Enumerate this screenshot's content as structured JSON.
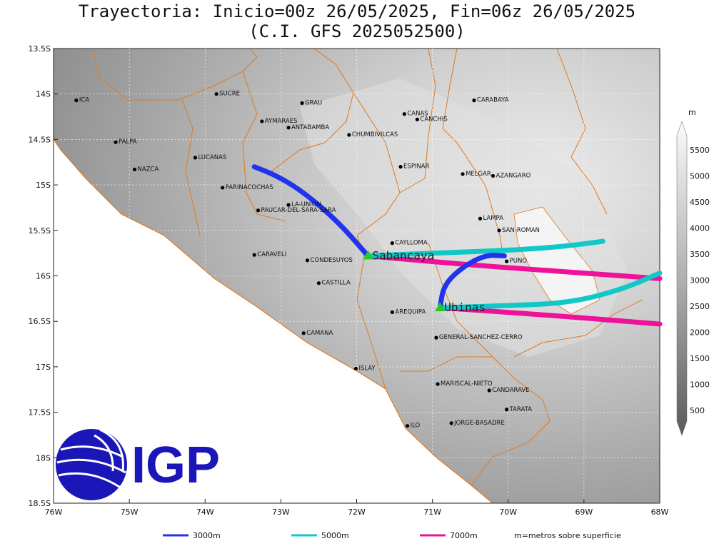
{
  "title": {
    "line1": "Trayectoria: Inicio=00z 26/05/2025, Fin=06z 26/05/2025",
    "line2": "(C.I. GFS 2025052500)"
  },
  "map": {
    "lon_range": [
      -76,
      -68
    ],
    "lat_range": [
      -18.5,
      -13.5
    ],
    "lon_ticks": [
      "76W",
      "75W",
      "74W",
      "73W",
      "72W",
      "71W",
      "70W",
      "69W",
      "68W"
    ],
    "lat_ticks": [
      "13.5S",
      "14S",
      "14.5S",
      "15S",
      "15.5S",
      "16S",
      "16.5S",
      "17S",
      "17.5S",
      "18S",
      "18.5S"
    ]
  },
  "places": [
    {
      "name": "ICA",
      "lon": -75.7,
      "lat": -14.07
    },
    {
      "name": "SUCRE",
      "lon": -73.85,
      "lat": -14.0
    },
    {
      "name": "GRAU",
      "lon": -72.72,
      "lat": -14.1
    },
    {
      "name": "CANAS",
      "lon": -71.37,
      "lat": -14.22
    },
    {
      "name": "CANCHIS",
      "lon": -71.2,
      "lat": -14.28
    },
    {
      "name": "CARABAYA",
      "lon": -70.45,
      "lat": -14.07
    },
    {
      "name": "AYMARAES",
      "lon": -73.25,
      "lat": -14.3
    },
    {
      "name": "ANTABAMBA",
      "lon": -72.9,
      "lat": -14.37
    },
    {
      "name": "CHUMBIVILCAS",
      "lon": -72.1,
      "lat": -14.45
    },
    {
      "name": "PALPA",
      "lon": -75.18,
      "lat": -14.53
    },
    {
      "name": "LUCANAS",
      "lon": -74.13,
      "lat": -14.7
    },
    {
      "name": "ESPINAR",
      "lon": -71.42,
      "lat": -14.8
    },
    {
      "name": "NAZCA",
      "lon": -74.93,
      "lat": -14.83
    },
    {
      "name": "MELGAR",
      "lon": -70.6,
      "lat": -14.88
    },
    {
      "name": "AZANGARO",
      "lon": -70.2,
      "lat": -14.9
    },
    {
      "name": "PARINACOCHAS",
      "lon": -73.77,
      "lat": -15.03
    },
    {
      "name": "LA-UNION",
      "lon": -72.9,
      "lat": -15.22
    },
    {
      "name": "PAUCAR-DEL-SARA-SARA",
      "lon": -73.3,
      "lat": -15.28
    },
    {
      "name": "LAMPA",
      "lon": -70.37,
      "lat": -15.37
    },
    {
      "name": "SAN-ROMAN",
      "lon": -70.12,
      "lat": -15.5
    },
    {
      "name": "CAYLLOMA",
      "lon": -71.53,
      "lat": -15.64
    },
    {
      "name": "CARAVELI",
      "lon": -73.35,
      "lat": -15.77
    },
    {
      "name": "CONDESUYOS",
      "lon": -72.65,
      "lat": -15.83
    },
    {
      "name": "PUNO",
      "lon": -70.02,
      "lat": -15.84
    },
    {
      "name": "CASTILLA",
      "lon": -72.5,
      "lat": -16.08
    },
    {
      "name": "AREQUIPA",
      "lon": -71.53,
      "lat": -16.4
    },
    {
      "name": "GENERAL-SANCHEZ-CERRO",
      "lon": -70.95,
      "lat": -16.68
    },
    {
      "name": "CAMANA",
      "lon": -72.7,
      "lat": -16.63
    },
    {
      "name": "ISLAY",
      "lon": -72.01,
      "lat": -17.02
    },
    {
      "name": "MARISCAL-NIETO",
      "lon": -70.93,
      "lat": -17.19
    },
    {
      "name": "CANDARAVE",
      "lon": -70.25,
      "lat": -17.26
    },
    {
      "name": "TARATA",
      "lon": -70.02,
      "lat": -17.47
    },
    {
      "name": "ILO",
      "lon": -71.33,
      "lat": -17.65
    },
    {
      "name": "JORGE-BASADRE",
      "lon": -70.75,
      "lat": -17.62
    }
  ],
  "volcanoes": [
    {
      "name": "Sabancaya",
      "lon": -71.85,
      "lat": -15.78
    },
    {
      "name": "Ubinas",
      "lon": -70.9,
      "lat": -16.35
    }
  ],
  "trajectories": [
    {
      "level": "3000m",
      "color": "#2233ee",
      "from": "Sabancaya",
      "points": [
        [
          -71.85,
          -15.78
        ],
        [
          -72.25,
          -15.4
        ],
        [
          -72.7,
          -15.08
        ],
        [
          -73.05,
          -14.9
        ],
        [
          -73.35,
          -14.8
        ]
      ]
    },
    {
      "level": "5000m",
      "color": "#11c8c8",
      "from": "Sabancaya",
      "points": [
        [
          -71.85,
          -15.78
        ],
        [
          -71.0,
          -15.75
        ],
        [
          -70.0,
          -15.72
        ],
        [
          -69.3,
          -15.68
        ],
        [
          -68.75,
          -15.62
        ]
      ]
    },
    {
      "level": "7000m",
      "color": "#ee1199",
      "from": "Sabancaya",
      "points": [
        [
          -71.85,
          -15.78
        ],
        [
          -70.5,
          -15.88
        ],
        [
          -69.0,
          -15.97
        ],
        [
          -68.0,
          -16.03
        ]
      ]
    },
    {
      "level": "3000m",
      "color": "#2233ee",
      "from": "Ubinas",
      "points": [
        [
          -70.9,
          -16.35
        ],
        [
          -70.85,
          -16.1
        ],
        [
          -70.6,
          -15.9
        ],
        [
          -70.3,
          -15.77
        ],
        [
          -70.05,
          -15.78
        ]
      ]
    },
    {
      "level": "5000m",
      "color": "#11c8c8",
      "from": "Ubinas",
      "points": [
        [
          -70.9,
          -16.35
        ],
        [
          -70.1,
          -16.33
        ],
        [
          -69.2,
          -16.3
        ],
        [
          -68.5,
          -16.15
        ],
        [
          -68.0,
          -15.97
        ]
      ]
    },
    {
      "level": "7000m",
      "color": "#ee1199",
      "from": "Ubinas",
      "points": [
        [
          -70.9,
          -16.35
        ],
        [
          -69.5,
          -16.43
        ],
        [
          -68.0,
          -16.53
        ]
      ]
    }
  ],
  "colorbar": {
    "unit": "m",
    "labels": [
      "500",
      "1000",
      "1500",
      "2000",
      "2500",
      "3000",
      "3500",
      "4000",
      "4500",
      "5000",
      "5500"
    ]
  },
  "legend": {
    "items": [
      {
        "label": "3000m",
        "color": "#2233ee"
      },
      {
        "label": "5000m",
        "color": "#11c8c8"
      },
      {
        "label": "7000m",
        "color": "#ee1199"
      }
    ],
    "note": "m=metros sobre superficie"
  },
  "logo": {
    "text": "IGP",
    "color": "#1a16b8"
  }
}
